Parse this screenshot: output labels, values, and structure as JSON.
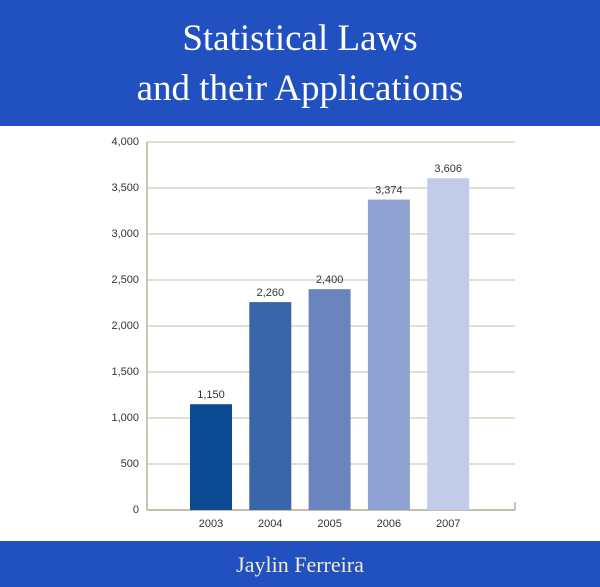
{
  "cover": {
    "title_lines": [
      "Statistical Laws",
      "and their Applications"
    ],
    "author": "Jaylin Ferreira"
  },
  "chart_data": {
    "type": "bar",
    "categories": [
      "2003",
      "2004",
      "2005",
      "2006",
      "2007"
    ],
    "values": [
      1150,
      2260,
      2400,
      3374,
      3606
    ],
    "value_labels": [
      "1,150",
      "2,260",
      "2,400",
      "3,374",
      "3,606"
    ],
    "colors": [
      "#0c4a93",
      "#3a65a8",
      "#6a84bd",
      "#8fa2d1",
      "#c2cbe7"
    ],
    "ylim": [
      0,
      4000
    ],
    "yticks": [
      0,
      500,
      {
        "value": 1000,
        "label": "1,000"
      },
      {
        "value": 1500,
        "label": "1,500"
      },
      {
        "value": 2000,
        "label": "2,000"
      },
      {
        "value": 2500,
        "label": "2,500"
      },
      {
        "value": 3000,
        "label": "3,000"
      },
      {
        "value": 3500,
        "label": "3,500"
      },
      {
        "value": 4000,
        "label": "4,000"
      }
    ],
    "grid": true
  }
}
